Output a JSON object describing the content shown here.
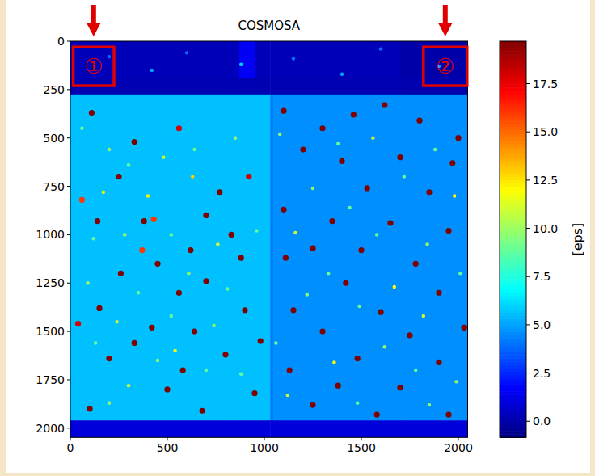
{
  "chart_data": {
    "type": "heatmap",
    "title": "COSMOSA",
    "xlim": [
      0,
      2048
    ],
    "ylim": [
      2048,
      0
    ],
    "xticks": [
      0,
      500,
      1000,
      1500,
      2000
    ],
    "yticks": [
      0,
      250,
      500,
      750,
      1000,
      1250,
      1500,
      1750,
      2000
    ],
    "x_edges": [
      0,
      870,
      950,
      1030,
      1045,
      1700,
      2048
    ],
    "y_edges": [
      0,
      190,
      275,
      1960,
      2048
    ],
    "values": [
      [
        0.3,
        1.5,
        0.3,
        0.3,
        0.3,
        0.0
      ],
      [
        0.2,
        0.2,
        0.2,
        0.2,
        0.2,
        0.1
      ],
      [
        5.6,
        5.6,
        5.6,
        4.2,
        4.6,
        4.6
      ],
      [
        1.0,
        1.0,
        1.0,
        1.0,
        1.0,
        1.0
      ]
    ],
    "spots": [
      [
        110,
        370,
        20
      ],
      [
        330,
        520,
        20
      ],
      [
        560,
        450,
        18
      ],
      [
        250,
        700,
        20
      ],
      [
        140,
        930,
        20
      ],
      [
        380,
        930,
        20
      ],
      [
        430,
        920,
        16
      ],
      [
        700,
        900,
        20
      ],
      [
        770,
        780,
        20
      ],
      [
        920,
        700,
        18
      ],
      [
        830,
        1000,
        20
      ],
      [
        620,
        1080,
        20
      ],
      [
        450,
        1150,
        20
      ],
      [
        880,
        1120,
        20
      ],
      [
        260,
        1200,
        20
      ],
      [
        700,
        1240,
        20
      ],
      [
        560,
        1300,
        20
      ],
      [
        150,
        1380,
        20
      ],
      [
        900,
        1390,
        20
      ],
      [
        420,
        1480,
        20
      ],
      [
        640,
        1500,
        20
      ],
      [
        330,
        1560,
        20
      ],
      [
        200,
        1640,
        20
      ],
      [
        800,
        1620,
        20
      ],
      [
        500,
        1800,
        20
      ],
      [
        680,
        1910,
        20
      ],
      [
        100,
        1900,
        20
      ],
      [
        40,
        1460,
        18
      ],
      [
        580,
        1700,
        20
      ],
      [
        950,
        1820,
        20
      ],
      [
        370,
        1080,
        16
      ],
      [
        60,
        820,
        16
      ],
      [
        980,
        1550,
        20
      ],
      [
        1100,
        360,
        20
      ],
      [
        1300,
        450,
        20
      ],
      [
        1460,
        380,
        20
      ],
      [
        1620,
        330,
        20
      ],
      [
        1800,
        410,
        20
      ],
      [
        2000,
        500,
        20
      ],
      [
        1970,
        630,
        20
      ],
      [
        1700,
        600,
        20
      ],
      [
        1400,
        620,
        20
      ],
      [
        1200,
        560,
        20
      ],
      [
        1530,
        760,
        20
      ],
      [
        1850,
        780,
        20
      ],
      [
        1100,
        870,
        20
      ],
      [
        1350,
        930,
        20
      ],
      [
        1650,
        940,
        20
      ],
      [
        1950,
        980,
        20
      ],
      [
        1110,
        1120,
        20
      ],
      [
        1250,
        1070,
        20
      ],
      [
        1500,
        1080,
        20
      ],
      [
        1780,
        1150,
        20
      ],
      [
        1420,
        1250,
        20
      ],
      [
        1900,
        1300,
        20
      ],
      [
        1150,
        1390,
        20
      ],
      [
        1600,
        1400,
        20
      ],
      [
        1300,
        1500,
        20
      ],
      [
        1750,
        1520,
        20
      ],
      [
        2030,
        1480,
        20
      ],
      [
        1480,
        1640,
        20
      ],
      [
        1900,
        1660,
        20
      ],
      [
        1130,
        1700,
        20
      ],
      [
        1380,
        1780,
        20
      ],
      [
        1700,
        1790,
        20
      ],
      [
        1250,
        1880,
        20
      ],
      [
        1580,
        1930,
        20
      ],
      [
        1950,
        1930,
        20
      ],
      [
        60,
        450,
        9
      ],
      [
        200,
        560,
        10
      ],
      [
        300,
        640,
        9
      ],
      [
        480,
        600,
        11
      ],
      [
        640,
        560,
        9
      ],
      [
        850,
        500,
        10
      ],
      [
        120,
        1020,
        9
      ],
      [
        280,
        1000,
        10
      ],
      [
        520,
        1000,
        9
      ],
      [
        760,
        1050,
        11
      ],
      [
        960,
        980,
        9
      ],
      [
        90,
        1250,
        10
      ],
      [
        350,
        1300,
        9
      ],
      [
        610,
        1200,
        10
      ],
      [
        810,
        1280,
        9
      ],
      [
        240,
        1450,
        11
      ],
      [
        520,
        1420,
        9
      ],
      [
        740,
        1470,
        10
      ],
      [
        130,
        1560,
        9
      ],
      [
        450,
        1650,
        10
      ],
      [
        700,
        1700,
        9
      ],
      [
        300,
        1780,
        11
      ],
      [
        880,
        1720,
        9
      ],
      [
        200,
        1870,
        10
      ],
      [
        540,
        1600,
        12
      ],
      [
        400,
        800,
        12
      ],
      [
        630,
        700,
        13
      ],
      [
        170,
        780,
        12
      ],
      [
        1080,
        480,
        10
      ],
      [
        1380,
        530,
        9
      ],
      [
        1560,
        500,
        11
      ],
      [
        1880,
        560,
        9
      ],
      [
        1250,
        760,
        10
      ],
      [
        1720,
        700,
        9
      ],
      [
        1980,
        800,
        12
      ],
      [
        1440,
        860,
        9
      ],
      [
        1160,
        990,
        11
      ],
      [
        1580,
        1000,
        9
      ],
      [
        1840,
        1050,
        10
      ],
      [
        1330,
        1200,
        9
      ],
      [
        1670,
        1270,
        12
      ],
      [
        2010,
        1200,
        9
      ],
      [
        1220,
        1310,
        10
      ],
      [
        1490,
        1370,
        9
      ],
      [
        1820,
        1420,
        11
      ],
      [
        1060,
        1560,
        9
      ],
      [
        1620,
        1580,
        10
      ],
      [
        1360,
        1660,
        12
      ],
      [
        1780,
        1700,
        9
      ],
      [
        1990,
        1760,
        10
      ],
      [
        1120,
        1830,
        11
      ],
      [
        1480,
        1870,
        9
      ],
      [
        1850,
        1880,
        10
      ],
      [
        200,
        80,
        4
      ],
      [
        420,
        150,
        5
      ],
      [
        600,
        60,
        4
      ],
      [
        880,
        120,
        6
      ],
      [
        1150,
        90,
        4
      ],
      [
        1400,
        170,
        5
      ],
      [
        1600,
        40,
        4
      ],
      [
        1900,
        130,
        5
      ]
    ],
    "color_range": [
      -0.84,
      19.7
    ],
    "color_ticks": [
      {
        "value": 0,
        "label": "0.0"
      },
      {
        "value": 2.5,
        "label": "2.5"
      },
      {
        "value": 5,
        "label": "5.0"
      },
      {
        "value": 7.5,
        "label": "7.5"
      },
      {
        "value": 10,
        "label": "10.0"
      },
      {
        "value": 12.5,
        "label": "12.5"
      },
      {
        "value": 15,
        "label": "15.0"
      },
      {
        "value": 17.5,
        "label": "17.5"
      }
    ],
    "colorbar_label": "[eps]",
    "annotations": [
      {
        "text": "①",
        "x": [
          15,
          225
        ],
        "y": [
          30,
          230
        ]
      },
      {
        "text": "②",
        "x": [
          1820,
          2045
        ],
        "y": [
          30,
          230
        ]
      }
    ],
    "color": "#e00000"
  }
}
